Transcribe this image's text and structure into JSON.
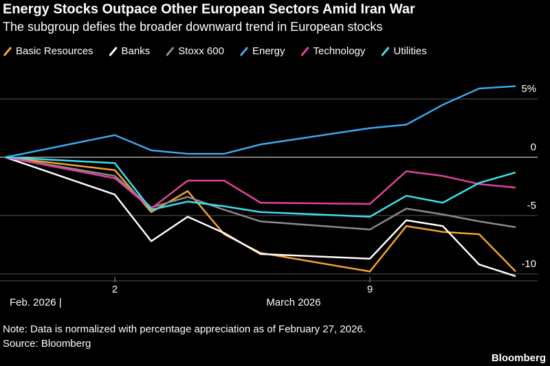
{
  "chart_data": {
    "type": "line",
    "title": "Energy Stocks Outpace Other European Sectors Amid Iran War",
    "subtitle": "The subgroup defies the broader downward trend in European stocks",
    "note": "Note: Data is normalized with percentage appreciation as of February 27, 2026.",
    "source": "Source: Bloomberg",
    "brand": "Bloomberg",
    "x": [
      "2026-02-27",
      "2026-03-02",
      "2026-03-03",
      "2026-03-04",
      "2026-03-05",
      "2026-03-06",
      "2026-03-09",
      "2026-03-10",
      "2026-03-11",
      "2026-03-12",
      "2026-03-13"
    ],
    "xlim": [
      "2026-02-27",
      "2026-03-13"
    ],
    "xticks": [
      {
        "value": "2026-03-02",
        "label": "2"
      },
      {
        "value": "2026-03-09",
        "label": "9"
      }
    ],
    "xperiods": [
      {
        "value": "2026-02-27",
        "label": "Feb. 2026 |"
      },
      {
        "value": "2026-03-06",
        "label": "March 2026"
      }
    ],
    "ylim": [
      -10.6,
      7.6
    ],
    "yticks": [
      {
        "value": 5,
        "label": "5%"
      },
      0,
      -5,
      -10
    ],
    "grid": true,
    "series": [
      {
        "name": "Basic Resources",
        "color": "#f5a331",
        "values": [
          0,
          -1.1,
          -4.7,
          -2.9,
          -6.6,
          -8.2,
          -9.8,
          -5.9,
          -6.4,
          -6.6,
          -9.8
        ]
      },
      {
        "name": "Banks",
        "color": "#ffffff",
        "values": [
          0,
          -3.2,
          -7.2,
          -5.1,
          -6.5,
          -8.3,
          -8.7,
          -5.4,
          -5.9,
          -9.2,
          -10.2
        ]
      },
      {
        "name": "Stoxx 600",
        "color": "#8a8a8a",
        "values": [
          0,
          -1.6,
          -4.3,
          -3.4,
          -4.5,
          -5.5,
          -6.2,
          -4.4,
          -4.9,
          -5.5,
          -6.0
        ]
      },
      {
        "name": "Energy",
        "color": "#3ea8ef",
        "values": [
          0,
          1.9,
          0.6,
          0.3,
          0.3,
          1.1,
          2.5,
          2.8,
          4.5,
          5.9,
          6.1
        ]
      },
      {
        "name": "Technology",
        "color": "#e8409e",
        "values": [
          0,
          -1.8,
          -4.4,
          -2.0,
          -2.0,
          -3.9,
          -4.0,
          -1.2,
          -1.6,
          -2.3,
          -2.6
        ]
      },
      {
        "name": "Utilities",
        "color": "#3ee0ea",
        "values": [
          0,
          -0.5,
          -4.5,
          -3.8,
          -4.2,
          -4.7,
          -5.1,
          -3.3,
          -3.9,
          -2.2,
          -1.3
        ]
      }
    ]
  }
}
